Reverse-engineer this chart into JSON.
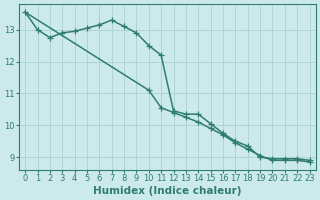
{
  "xlabel": "Humidex (Indice chaleur)",
  "bg_color": "#cdeaea",
  "line_color": "#2e7d6e",
  "grid_color": "#aed4d4",
  "line1_x": [
    0,
    1,
    2,
    3,
    4,
    5,
    6,
    7,
    8,
    9,
    10,
    11,
    12,
    13,
    14,
    15,
    16,
    17,
    18,
    19,
    20,
    21,
    22,
    23
  ],
  "line1_y": [
    13.55,
    13.0,
    12.75,
    12.9,
    12.95,
    13.05,
    13.15,
    13.3,
    13.1,
    12.9,
    12.5,
    12.2,
    10.45,
    10.35,
    10.35,
    10.05,
    9.75,
    9.5,
    9.35,
    9.0,
    8.95,
    8.95,
    8.95,
    8.9
  ],
  "line1_markers": [
    0,
    1,
    2,
    3,
    4,
    5,
    6,
    7,
    8,
    9,
    10,
    11,
    12,
    13,
    14,
    15,
    16,
    17,
    18,
    19,
    20,
    21,
    22,
    23
  ],
  "line2_x": [
    0,
    10,
    11,
    12,
    13,
    14,
    15,
    16,
    17,
    18,
    19,
    20,
    21,
    22,
    23
  ],
  "line2_y": [
    13.55,
    11.1,
    10.55,
    10.4,
    10.25,
    10.1,
    9.9,
    9.7,
    9.45,
    9.25,
    9.05,
    8.9,
    8.9,
    8.9,
    8.85
  ],
  "xlim": [
    -0.5,
    23.5
  ],
  "ylim": [
    8.6,
    13.8
  ],
  "xticks": [
    0,
    1,
    2,
    3,
    4,
    5,
    6,
    7,
    8,
    9,
    10,
    11,
    12,
    13,
    14,
    15,
    16,
    17,
    18,
    19,
    20,
    21,
    22,
    23
  ],
  "yticks": [
    9,
    10,
    11,
    12,
    13
  ],
  "marker": "+",
  "markersize": 4,
  "linewidth": 1.1,
  "tick_fontsize": 6.0,
  "xlabel_fontsize": 7.5
}
